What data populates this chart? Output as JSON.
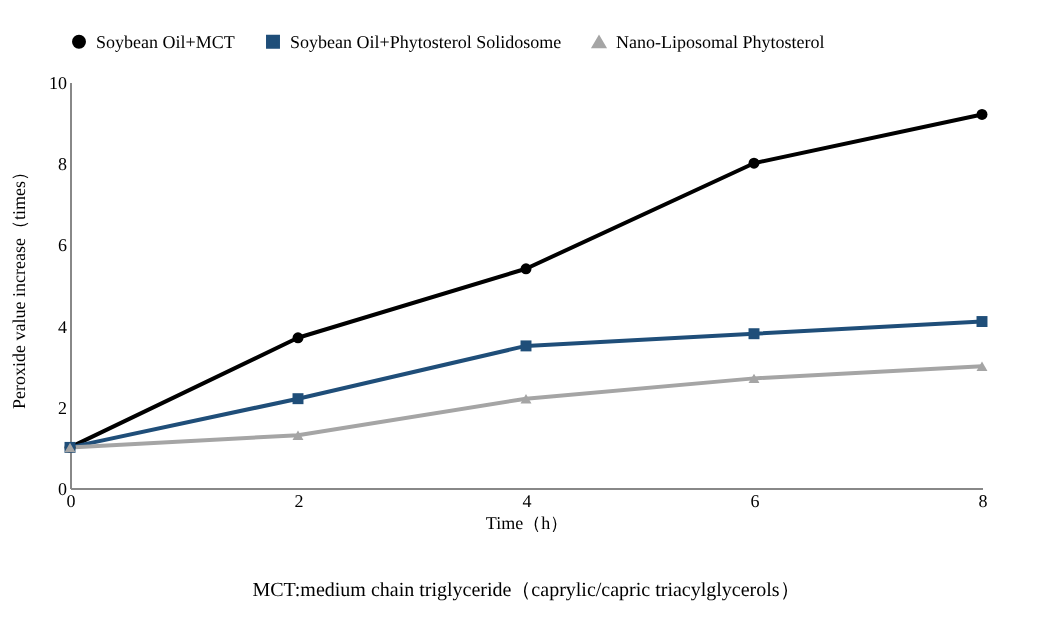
{
  "chart_data": {
    "type": "line",
    "x": [
      0,
      2,
      4,
      6,
      8
    ],
    "series": [
      {
        "name": "Soybean Oil+MCT",
        "color": "#000000",
        "marker": "circle",
        "values": [
          1,
          3.7,
          5.4,
          8.0,
          9.2
        ]
      },
      {
        "name": "Soybean Oil+Phytosterol Solidosome",
        "color": "#1f4e79",
        "marker": "square",
        "values": [
          1,
          2.2,
          3.5,
          3.8,
          4.1
        ]
      },
      {
        "name": "Nano-Liposomal Phytosterol",
        "color": "#a5a5a5",
        "marker": "triangle",
        "values": [
          1,
          1.3,
          2.2,
          2.7,
          3.0
        ]
      }
    ],
    "xlabel": "Time（h）",
    "ylabel": "Peroxide value increase（times）",
    "xlim": [
      0,
      8
    ],
    "xticks": [
      0,
      2,
      4,
      6,
      8
    ],
    "ylim": [
      0,
      10
    ],
    "yticks": [
      0,
      2,
      4,
      6,
      8,
      10
    ],
    "grid": false,
    "legend": "top",
    "line_style": "solid",
    "annotations": [
      "MCT:medium chain triglyceride（caprylic/capric triacylglycerols）"
    ]
  }
}
